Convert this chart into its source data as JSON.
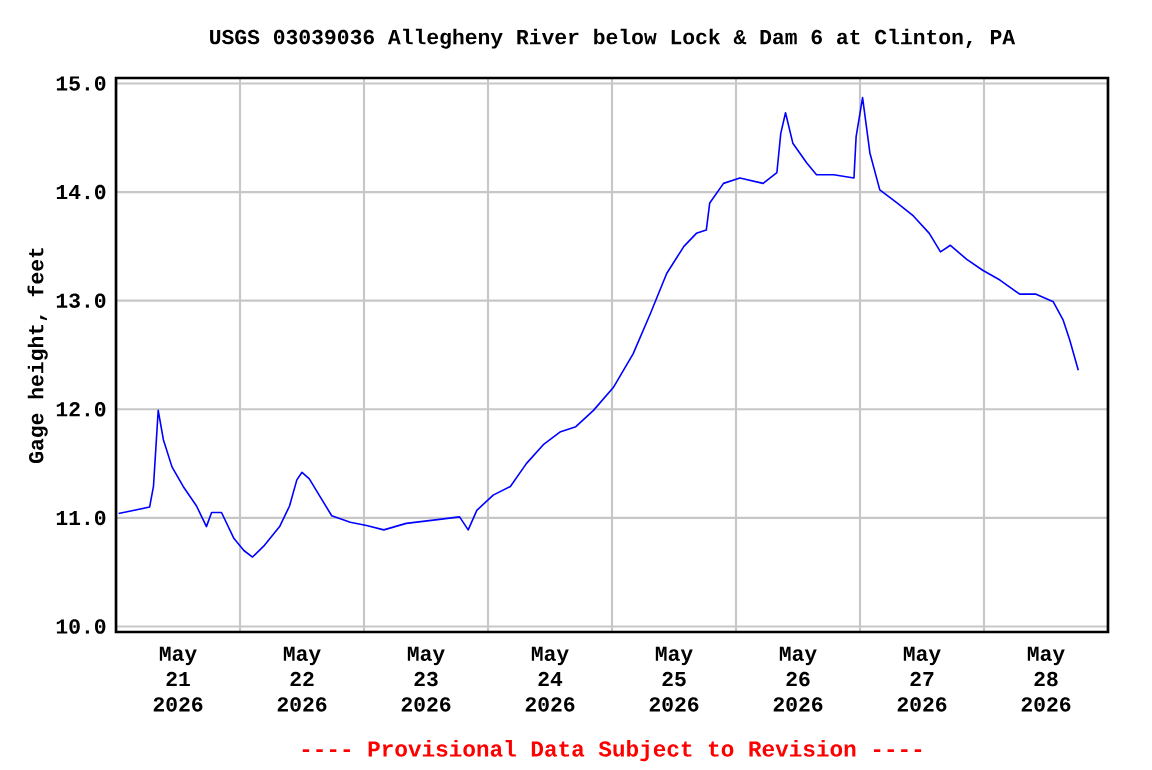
{
  "chart_data": {
    "type": "line",
    "title": "USGS 03039036 Allegheny River below Lock & Dam 6 at Clinton, PA",
    "ylabel": "Gage height, feet",
    "annotations": [
      "---- Provisional Data Subject to Revision ----"
    ],
    "x": [
      "2026-05-21T00:30",
      "2026-05-21T06:30",
      "2026-05-21T07:15",
      "2026-05-21T08:10",
      "2026-05-21T09:10",
      "2026-05-21T10:50",
      "2026-05-21T13:00",
      "2026-05-21T15:35",
      "2026-05-21T17:30",
      "2026-05-21T18:30",
      "2026-05-21T20:25",
      "2026-05-21T22:50",
      "2026-05-22T00:45",
      "2026-05-22T02:25",
      "2026-05-22T04:35",
      "2026-05-22T07:40",
      "2026-05-22T09:35",
      "2026-05-22T11:00",
      "2026-05-22T12:00",
      "2026-05-22T13:25",
      "2026-05-22T15:35",
      "2026-05-22T17:45",
      "2026-05-22T21:20",
      "2026-05-23T00:30",
      "2026-05-23T03:50",
      "2026-05-23T08:10",
      "2026-05-23T13:25",
      "2026-05-23T18:30",
      "2026-05-23T20:10",
      "2026-05-23T21:50",
      "2026-05-24T01:00",
      "2026-05-24T04:20",
      "2026-05-24T07:25",
      "2026-05-24T10:50",
      "2026-05-24T13:55",
      "2026-05-24T17:00",
      "2026-05-24T20:25",
      "2026-05-25T00:15",
      "2026-05-25T04:05",
      "2026-05-25T07:25",
      "2026-05-25T10:35",
      "2026-05-25T13:55",
      "2026-05-25T16:20",
      "2026-05-25T18:15",
      "2026-05-25T18:55",
      "2026-05-25T21:35",
      "2026-05-26T00:45",
      "2026-05-26T05:15",
      "2026-05-26T07:55",
      "2026-05-26T08:40",
      "2026-05-26T09:35",
      "2026-05-26T11:00",
      "2026-05-26T13:40",
      "2026-05-26T15:35",
      "2026-05-26T18:55",
      "2026-05-26T22:50",
      "2026-05-26T23:15",
      "2026-05-27T00:30",
      "2026-05-27T01:55",
      "2026-05-27T03:50",
      "2026-05-27T07:10",
      "2026-05-27T10:20",
      "2026-05-27T13:25",
      "2026-05-27T15:35",
      "2026-05-27T17:30",
      "2026-05-27T20:40",
      "2026-05-27T23:45",
      "2026-05-28T03:05",
      "2026-05-28T06:55",
      "2026-05-28T10:05",
      "2026-05-28T13:25",
      "2026-05-28T15:20",
      "2026-05-28T16:35",
      "2026-05-28T18:15"
    ],
    "values": [
      11.04,
      11.1,
      11.29,
      11.99,
      11.72,
      11.47,
      11.29,
      11.11,
      10.92,
      11.05,
      11.05,
      10.81,
      10.7,
      10.64,
      10.74,
      10.92,
      11.11,
      11.35,
      11.42,
      11.36,
      11.19,
      11.02,
      10.96,
      10.93,
      10.89,
      10.95,
      10.98,
      11.01,
      10.89,
      11.07,
      11.21,
      11.29,
      11.5,
      11.68,
      11.79,
      11.84,
      11.99,
      12.2,
      12.51,
      12.88,
      13.25,
      13.5,
      13.62,
      13.65,
      13.9,
      14.08,
      14.13,
      14.08,
      14.18,
      14.54,
      14.73,
      14.45,
      14.27,
      14.16,
      14.16,
      14.13,
      14.51,
      14.87,
      14.36,
      14.02,
      13.9,
      13.78,
      13.62,
      13.45,
      13.51,
      13.38,
      13.28,
      13.19,
      13.06,
      13.06,
      12.99,
      12.82,
      12.64,
      12.36
    ],
    "color": "#0000ff",
    "xlim": [
      "2026-05-21T00:00",
      "2026-05-29T00:00"
    ],
    "xticks": [
      {
        "value": "2026-05-21T12:00",
        "label": "May 21 2026"
      },
      {
        "value": "2026-05-22T12:00",
        "label": "May 22 2026"
      },
      {
        "value": "2026-05-23T12:00",
        "label": "May 23 2026"
      },
      {
        "value": "2026-05-24T12:00",
        "label": "May 24 2026"
      },
      {
        "value": "2026-05-25T12:00",
        "label": "May 25 2026"
      },
      {
        "value": "2026-05-26T12:00",
        "label": "May 26 2026"
      },
      {
        "value": "2026-05-27T12:00",
        "label": "May 27 2026"
      },
      {
        "value": "2026-05-28T12:00",
        "label": "May 28 2026"
      },
      {
        "value": "2026-05-22T00:00",
        "label": null
      },
      {
        "value": "2026-05-23T00:00",
        "label": null
      },
      {
        "value": "2026-05-24T00:00",
        "label": null
      },
      {
        "value": "2026-05-25T00:00",
        "label": null
      },
      {
        "value": "2026-05-26T00:00",
        "label": null
      },
      {
        "value": "2026-05-27T00:00",
        "label": null
      },
      {
        "value": "2026-05-28T00:00",
        "label": null
      }
    ],
    "ylim": [
      9.95,
      15.05
    ],
    "yticks": [
      {
        "value": 10,
        "label": "10.0"
      },
      {
        "value": 11,
        "label": "11.0"
      },
      {
        "value": 12,
        "label": "12.0"
      },
      {
        "value": 13,
        "label": "13.0"
      },
      {
        "value": 14,
        "label": "14.0"
      },
      {
        "value": 15,
        "label": "15.0"
      }
    ],
    "grid": true
  }
}
